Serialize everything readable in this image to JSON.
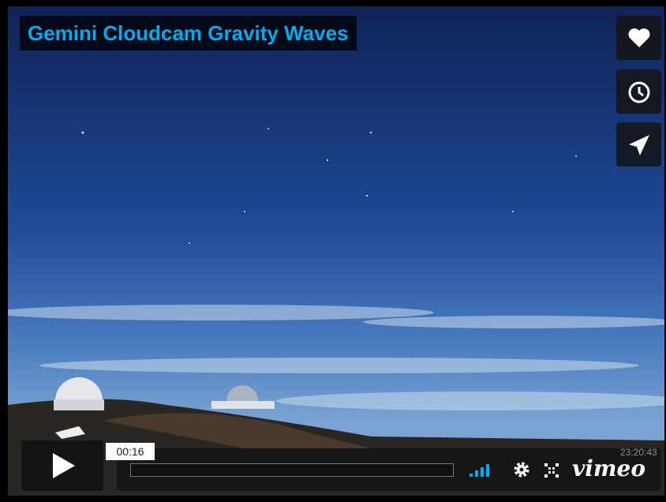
{
  "header": {
    "title": "Gemini Cloudcam Gravity Waves"
  },
  "player": {
    "current_time": "00:16",
    "video_timestamp": "23:20:43",
    "logo": "vimeo"
  }
}
